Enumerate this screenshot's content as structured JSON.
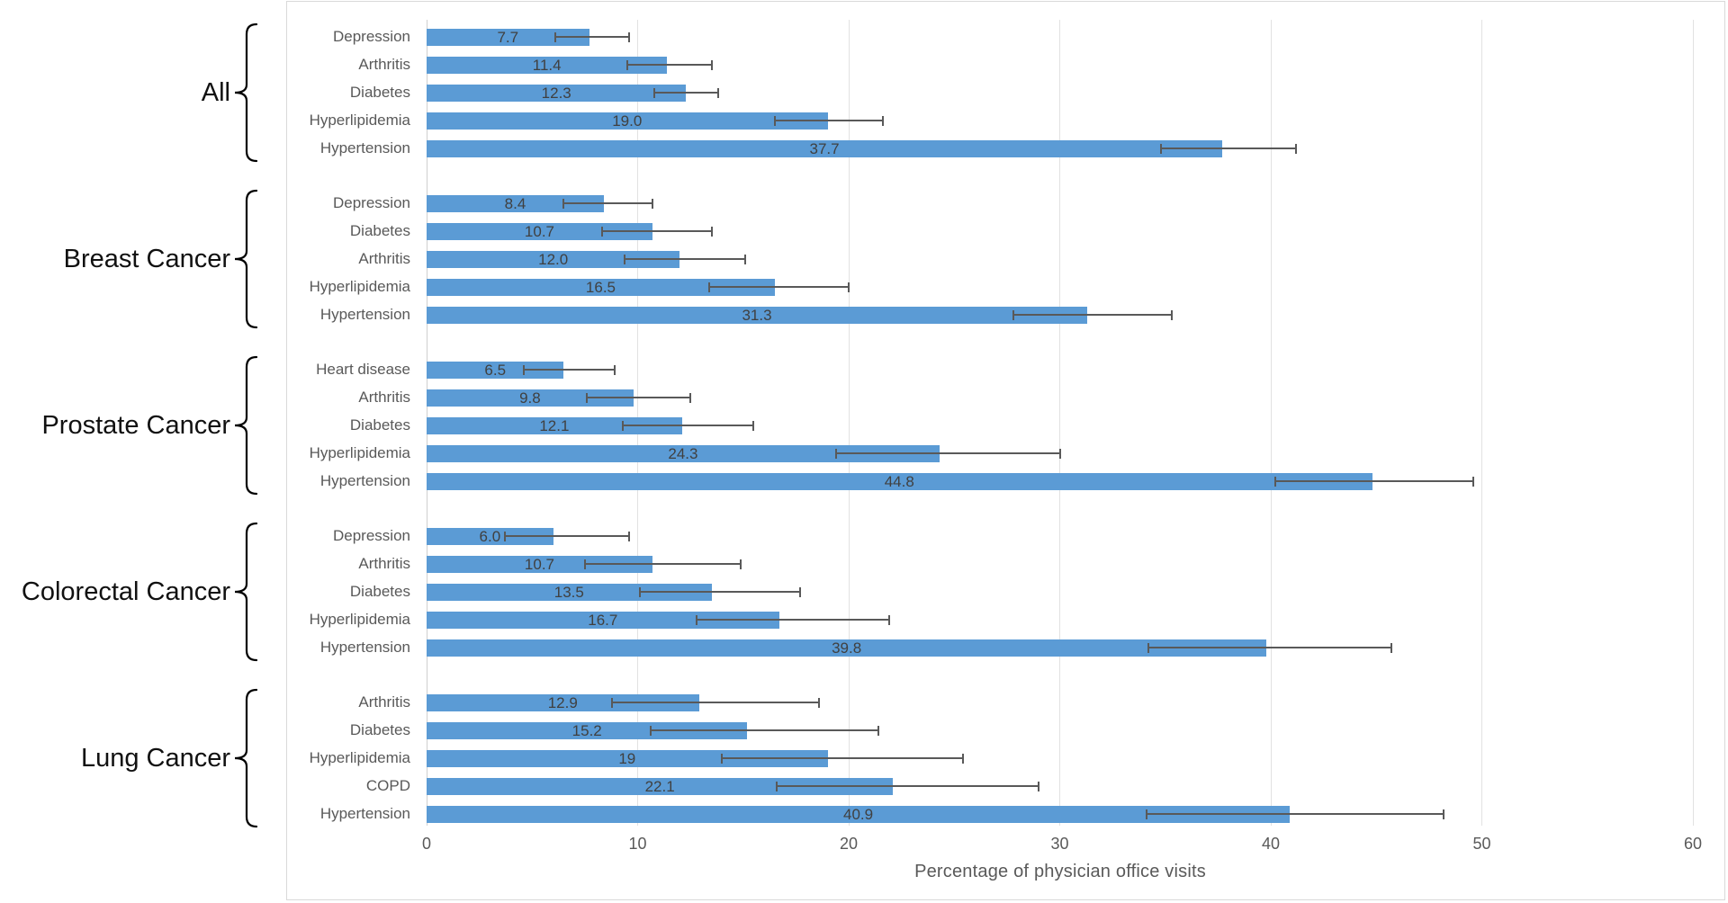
{
  "chart_data": {
    "type": "bar",
    "orientation": "horizontal",
    "title": "",
    "xlabel": "Percentage of physician office visits",
    "xlim": [
      0,
      60
    ],
    "x_ticks": [
      0,
      10,
      20,
      30,
      40,
      50,
      60
    ],
    "grid": true,
    "legend": "none",
    "bar_color": "#5B9BD5",
    "error_bar_color": "#595959",
    "groups": [
      {
        "label": "All",
        "rows": [
          {
            "label": "Depression",
            "value": 7.7,
            "value_label": "7.7",
            "ci_low": 6.1,
            "ci_high": 9.6
          },
          {
            "label": "Arthritis",
            "value": 11.4,
            "value_label": "11.4",
            "ci_low": 9.5,
            "ci_high": 13.5
          },
          {
            "label": "Diabetes",
            "value": 12.3,
            "value_label": "12.3",
            "ci_low": 10.8,
            "ci_high": 13.8
          },
          {
            "label": "Hyperlipidemia",
            "value": 19.0,
            "value_label": "19.0",
            "ci_low": 16.5,
            "ci_high": 21.6
          },
          {
            "label": "Hypertension",
            "value": 37.7,
            "value_label": "37.7",
            "ci_low": 34.8,
            "ci_high": 41.2
          }
        ]
      },
      {
        "label": "Breast Cancer",
        "rows": [
          {
            "label": "Depression",
            "value": 8.4,
            "value_label": "8.4",
            "ci_low": 6.5,
            "ci_high": 10.7
          },
          {
            "label": "Diabetes",
            "value": 10.7,
            "value_label": "10.7",
            "ci_low": 8.3,
            "ci_high": 13.5
          },
          {
            "label": "Arthritis",
            "value": 12.0,
            "value_label": "12.0",
            "ci_low": 9.4,
            "ci_high": 15.1
          },
          {
            "label": "Hyperlipidemia",
            "value": 16.5,
            "value_label": "16.5",
            "ci_low": 13.4,
            "ci_high": 20.0
          },
          {
            "label": "Hypertension",
            "value": 31.3,
            "value_label": "31.3",
            "ci_low": 27.8,
            "ci_high": 35.3
          }
        ]
      },
      {
        "label": "Prostate Cancer",
        "rows": [
          {
            "label": "Heart disease",
            "value": 6.5,
            "value_label": "6.5",
            "ci_low": 4.6,
            "ci_high": 8.9
          },
          {
            "label": "Arthritis",
            "value": 9.8,
            "value_label": "9.8",
            "ci_low": 7.6,
            "ci_high": 12.5
          },
          {
            "label": "Diabetes",
            "value": 12.1,
            "value_label": "12.1",
            "ci_low": 9.3,
            "ci_high": 15.5
          },
          {
            "label": "Hyperlipidemia",
            "value": 24.3,
            "value_label": "24.3",
            "ci_low": 19.4,
            "ci_high": 30.0
          },
          {
            "label": "Hypertension",
            "value": 44.8,
            "value_label": "44.8",
            "ci_low": 40.2,
            "ci_high": 49.6
          }
        ]
      },
      {
        "label": "Colorectal Cancer",
        "rows": [
          {
            "label": "Depression",
            "value": 6.0,
            "value_label": "6.0",
            "ci_low": 3.7,
            "ci_high": 9.6
          },
          {
            "label": "Arthritis",
            "value": 10.7,
            "value_label": "10.7",
            "ci_low": 7.5,
            "ci_high": 14.9
          },
          {
            "label": "Diabetes",
            "value": 13.5,
            "value_label": "13.5",
            "ci_low": 10.1,
            "ci_high": 17.7
          },
          {
            "label": "Hyperlipidemia",
            "value": 16.7,
            "value_label": "16.7",
            "ci_low": 12.8,
            "ci_high": 21.9
          },
          {
            "label": "Hypertension",
            "value": 39.8,
            "value_label": "39.8",
            "ci_low": 34.2,
            "ci_high": 45.7
          }
        ]
      },
      {
        "label": "Lung Cancer",
        "rows": [
          {
            "label": "Arthritis",
            "value": 12.9,
            "value_label": "12.9",
            "ci_low": 8.8,
            "ci_high": 18.6
          },
          {
            "label": "Diabetes",
            "value": 15.2,
            "value_label": "15.2",
            "ci_low": 10.6,
            "ci_high": 21.4
          },
          {
            "label": "Hyperlipidemia",
            "value": 19,
            "value_label": "19",
            "ci_low": 14.0,
            "ci_high": 25.4
          },
          {
            "label": "COPD",
            "value": 22.1,
            "value_label": "22.1",
            "ci_low": 16.6,
            "ci_high": 29.0
          },
          {
            "label": "Hypertension",
            "value": 40.9,
            "value_label": "40.9",
            "ci_low": 34.1,
            "ci_high": 48.2
          }
        ]
      }
    ]
  },
  "colors": {
    "bar": "#5B9BD5",
    "error_bar": "#595959",
    "gridline": "#E2E2E2",
    "frame_border": "#D9D9D9",
    "category_label": "#595959",
    "value_label": "#404040",
    "tick_label": "#595959",
    "axis_title": "#595959",
    "group_label": "#111111",
    "brace": "#000000"
  }
}
